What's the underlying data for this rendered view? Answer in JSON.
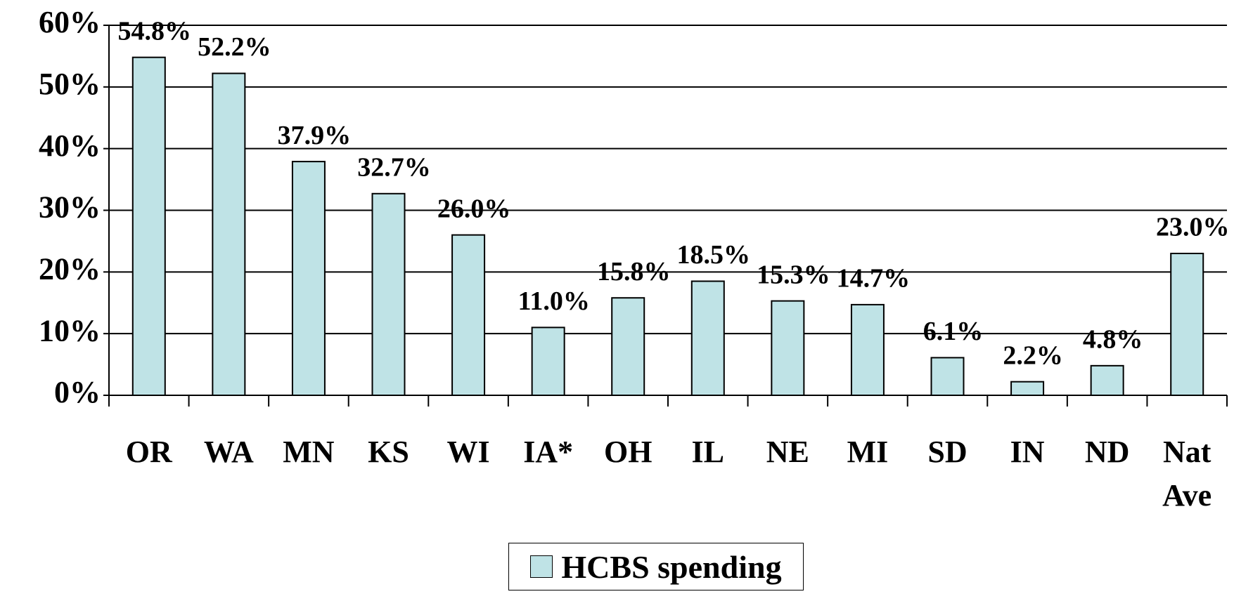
{
  "chart_data": {
    "type": "bar",
    "categories": [
      "OR",
      "WA",
      "MN",
      "KS",
      "WI",
      "IA*",
      "OH",
      "IL",
      "NE",
      "MI",
      "SD",
      "IN",
      "ND",
      "Nat Ave"
    ],
    "series": [
      {
        "name": "HCBS spending",
        "color": "#bfe3e6",
        "values": [
          54.8,
          52.2,
          37.9,
          32.7,
          26.0,
          11.0,
          15.8,
          18.5,
          15.3,
          14.7,
          6.1,
          2.2,
          4.8,
          23.0
        ],
        "value_labels": [
          "54.8%",
          "52.2%",
          "37.9%",
          "32.7%",
          "26.0%",
          "11.0%",
          "15.8%",
          "18.5%",
          "15.3%",
          "14.7%",
          "6.1%",
          "2.2%",
          "4.8%",
          "23.0%"
        ]
      }
    ],
    "ylim": [
      0,
      60
    ],
    "yticks": [
      {
        "value": 0,
        "label": "0%"
      },
      {
        "value": 10,
        "label": "10%"
      },
      {
        "value": 20,
        "label": "20%"
      },
      {
        "value": 30,
        "label": "30%"
      },
      {
        "value": 40,
        "label": "40%"
      },
      {
        "value": 50,
        "label": "50%"
      },
      {
        "value": 60,
        "label": "60%"
      }
    ],
    "grid": true,
    "legend": "bottom"
  }
}
